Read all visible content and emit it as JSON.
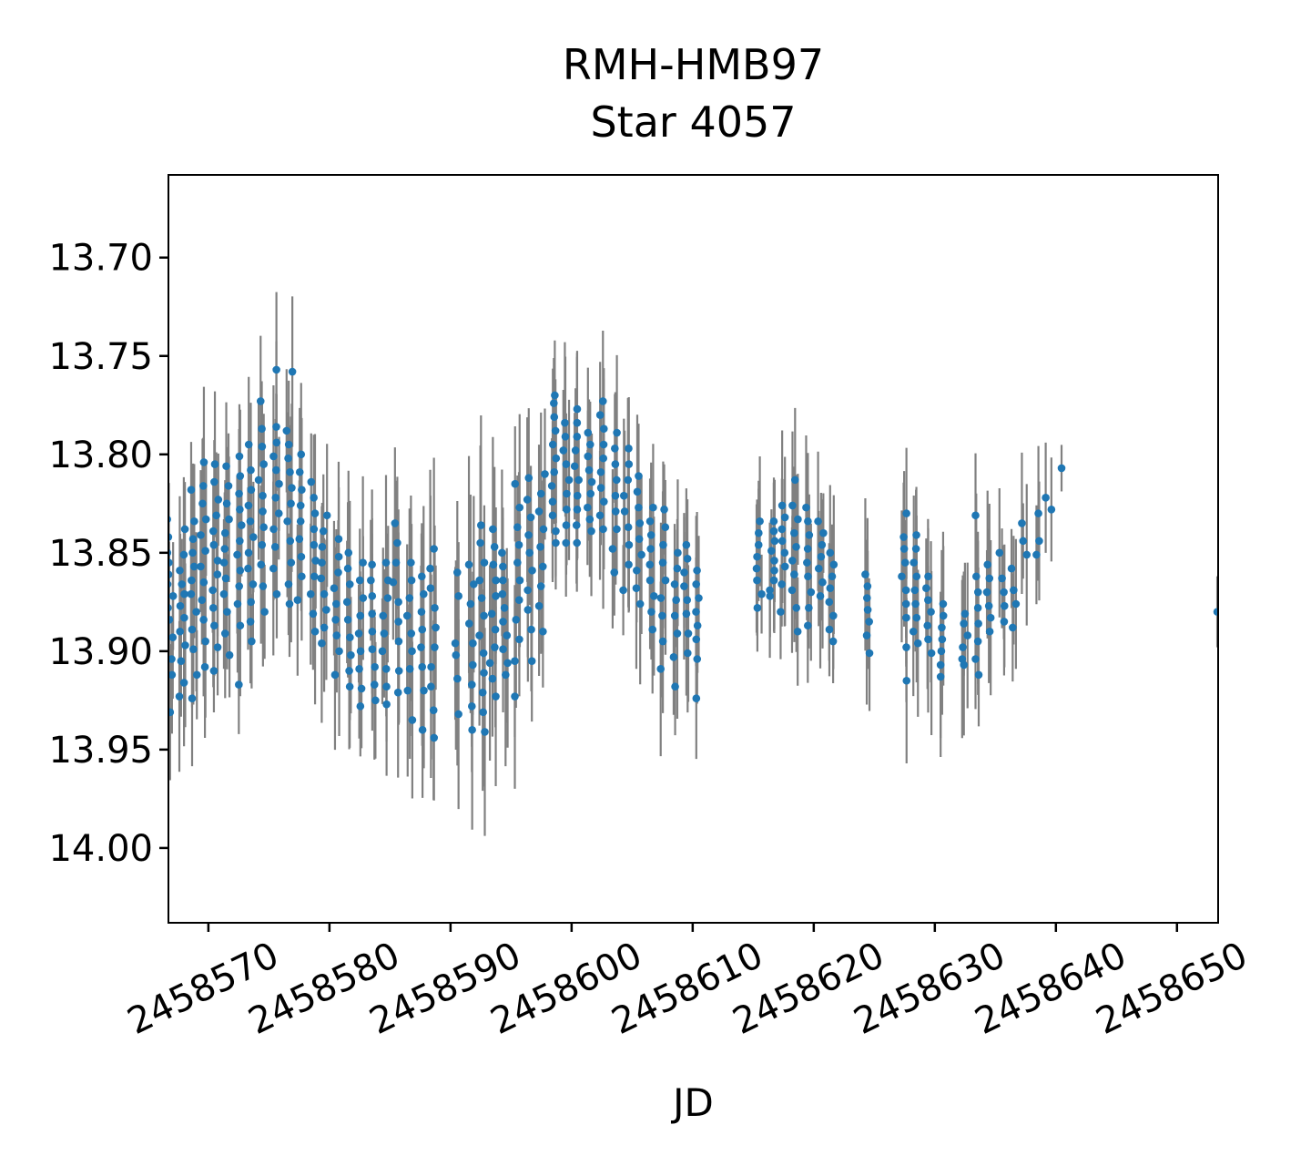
{
  "title": "RMH-HMB97",
  "subtitle": "Star 4057",
  "xlabel": "JD",
  "chart_data": {
    "type": "scatter",
    "title": "RMH-HMB97",
    "subtitle": "Star 4057",
    "xlabel": "JD",
    "ylabel": "",
    "legend": null,
    "grid": false,
    "x_ticks": [
      2458570,
      2458580,
      2458590,
      2458600,
      2458610,
      2458620,
      2458630,
      2458640,
      2458650
    ],
    "y_ticks": [
      13.7,
      13.75,
      13.8,
      13.85,
      13.9,
      13.95,
      14.0
    ],
    "y_tick_labels": [
      "13.70",
      "13.75",
      "13.80",
      "13.85",
      "13.90",
      "13.95",
      "14.00"
    ],
    "x_range": [
      2458566.7,
      2458653.4
    ],
    "y_range": [
      13.658,
      14.038
    ],
    "y_axis_inverted": true,
    "x_tick_rotation_deg": 26,
    "marker_color": "#1f77b4",
    "errorbar_color": "#808080",
    "intra_night_spread_days": 0.5,
    "nights": [
      {
        "jd": 2458566.85,
        "err": 0.03,
        "mags": [
          13.833,
          13.842,
          13.85,
          13.855,
          13.861,
          13.866,
          13.872,
          13.878,
          13.884,
          13.893,
          13.904,
          13.912,
          13.931
        ]
      },
      {
        "jd": 2458567.85,
        "err": 0.03,
        "mags": [
          13.838,
          13.851,
          13.859,
          13.866,
          13.871,
          13.877,
          13.883,
          13.89,
          13.897,
          13.905,
          13.916,
          13.923
        ]
      },
      {
        "jd": 2458568.8,
        "err": 0.03,
        "mags": [
          13.818,
          13.834,
          13.843,
          13.85,
          13.857,
          13.864,
          13.871,
          13.88,
          13.889,
          13.899,
          13.912,
          13.924
        ]
      },
      {
        "jd": 2458569.6,
        "err": 0.03,
        "mags": [
          13.804,
          13.816,
          13.825,
          13.833,
          13.841,
          13.849,
          13.857,
          13.865,
          13.874,
          13.884,
          13.895,
          13.908
        ]
      },
      {
        "jd": 2458570.6,
        "err": 0.03,
        "mags": [
          13.805,
          13.814,
          13.823,
          13.831,
          13.839,
          13.846,
          13.854,
          13.861,
          13.869,
          13.878,
          13.887,
          13.898,
          13.91
        ]
      },
      {
        "jd": 2458571.5,
        "err": 0.03,
        "mags": [
          13.806,
          13.816,
          13.825,
          13.833,
          13.84,
          13.848,
          13.855,
          13.863,
          13.871,
          13.88,
          13.891,
          13.902
        ]
      },
      {
        "jd": 2458572.5,
        "err": 0.03,
        "mags": [
          13.801,
          13.811,
          13.82,
          13.828,
          13.836,
          13.844,
          13.851,
          13.859,
          13.867,
          13.876,
          13.887,
          13.917
        ]
      },
      {
        "jd": 2458573.5,
        "err": 0.03,
        "mags": [
          13.795,
          13.808,
          13.818,
          13.826,
          13.834,
          13.842,
          13.85,
          13.858,
          13.866,
          13.875,
          13.885,
          13.895
        ]
      },
      {
        "jd": 2458574.4,
        "err": 0.03,
        "mags": [
          13.773,
          13.787,
          13.796,
          13.805,
          13.813,
          13.821,
          13.829,
          13.837,
          13.846,
          13.856,
          13.867,
          13.88
        ]
      },
      {
        "jd": 2458575.6,
        "err": 0.032,
        "mags": [
          13.757,
          13.786,
          13.794,
          13.801,
          13.808,
          13.815,
          13.822,
          13.83,
          13.838,
          13.847,
          13.858,
          13.871
        ]
      },
      {
        "jd": 2458576.7,
        "err": 0.032,
        "mags": [
          13.758,
          13.788,
          13.795,
          13.802,
          13.809,
          13.817,
          13.825,
          13.834,
          13.844,
          13.855,
          13.866,
          13.876
        ]
      },
      {
        "jd": 2458577.5,
        "err": 0.03,
        "mags": [
          13.8,
          13.809,
          13.818,
          13.826,
          13.834,
          13.843,
          13.852,
          13.862,
          13.874
        ]
      },
      {
        "jd": 2458578.65,
        "err": 0.03,
        "mags": [
          13.814,
          13.822,
          13.83,
          13.838,
          13.846,
          13.854,
          13.862,
          13.871,
          13.881,
          13.89
        ]
      },
      {
        "jd": 2458579.55,
        "err": 0.03,
        "mags": [
          13.831,
          13.839,
          13.847,
          13.855,
          13.863,
          13.871,
          13.879,
          13.888,
          13.896
        ]
      },
      {
        "jd": 2458580.6,
        "err": 0.032,
        "mags": [
          13.843,
          13.852,
          13.86,
          13.868,
          13.876,
          13.884,
          13.892,
          13.9,
          13.912
        ]
      },
      {
        "jd": 2458581.6,
        "err": 0.032,
        "mags": [
          13.85,
          13.858,
          13.866,
          13.875,
          13.884,
          13.893,
          13.902,
          13.91,
          13.918
        ]
      },
      {
        "jd": 2458582.55,
        "err": 0.032,
        "mags": [
          13.855,
          13.864,
          13.873,
          13.882,
          13.891,
          13.9,
          13.909,
          13.919,
          13.928
        ]
      },
      {
        "jd": 2458583.55,
        "err": 0.032,
        "mags": [
          13.856,
          13.864,
          13.872,
          13.881,
          13.89,
          13.899,
          13.908,
          13.917,
          13.925
        ]
      },
      {
        "jd": 2458584.6,
        "err": 0.034,
        "mags": [
          13.855,
          13.864,
          13.873,
          13.882,
          13.891,
          13.9,
          13.909,
          13.918,
          13.927
        ]
      },
      {
        "jd": 2458585.5,
        "err": 0.034,
        "mags": [
          13.835,
          13.845,
          13.855,
          13.865,
          13.875,
          13.885,
          13.895,
          13.91,
          13.921
        ]
      },
      {
        "jd": 2458586.6,
        "err": 0.034,
        "mags": [
          13.855,
          13.864,
          13.873,
          13.882,
          13.891,
          13.9,
          13.909,
          13.92,
          13.935
        ]
      },
      {
        "jd": 2458587.6,
        "err": 0.034,
        "mags": [
          13.862,
          13.871,
          13.88,
          13.889,
          13.898,
          13.908,
          13.92,
          13.94
        ]
      },
      {
        "jd": 2458588.55,
        "err": 0.036,
        "mags": [
          13.848,
          13.858,
          13.868,
          13.878,
          13.888,
          13.898,
          13.908,
          13.918,
          13.93,
          13.944
        ]
      },
      {
        "jd": 2458590.6,
        "err": 0.038,
        "mags": [
          13.86,
          13.872,
          13.896,
          13.902,
          13.914,
          13.932
        ]
      },
      {
        "jd": 2458591.7,
        "err": 0.04,
        "mags": [
          13.856,
          13.866,
          13.876,
          13.886,
          13.896,
          13.907,
          13.917,
          13.928,
          13.94
        ]
      },
      {
        "jd": 2458592.6,
        "err": 0.04,
        "mags": [
          13.836,
          13.845,
          13.855,
          13.864,
          13.873,
          13.882,
          13.892,
          13.901,
          13.911,
          13.921,
          13.931,
          13.941
        ]
      },
      {
        "jd": 2458593.5,
        "err": 0.036,
        "mags": [
          13.838,
          13.847,
          13.856,
          13.864,
          13.872,
          13.881,
          13.889,
          13.898,
          13.906,
          13.914,
          13.923
        ]
      },
      {
        "jd": 2458594.5,
        "err": 0.034,
        "mags": [
          13.85,
          13.857,
          13.864,
          13.871,
          13.878,
          13.885,
          13.892,
          13.899,
          13.906,
          13.912
        ]
      },
      {
        "jd": 2458595.5,
        "err": 0.034,
        "mags": [
          13.815,
          13.827,
          13.837,
          13.846,
          13.855,
          13.864,
          13.874,
          13.884,
          13.894,
          13.905,
          13.923
        ]
      },
      {
        "jd": 2458596.5,
        "err": 0.034,
        "mags": [
          13.812,
          13.823,
          13.832,
          13.841,
          13.85,
          13.859,
          13.869,
          13.879,
          13.889,
          13.905
        ]
      },
      {
        "jd": 2458597.55,
        "err": 0.032,
        "mags": [
          13.81,
          13.82,
          13.829,
          13.838,
          13.847,
          13.857,
          13.867,
          13.877,
          13.89
        ]
      },
      {
        "jd": 2458598.5,
        "err": 0.03,
        "mags": [
          13.77,
          13.774,
          13.781,
          13.788,
          13.795,
          13.802,
          13.809,
          13.816,
          13.824,
          13.831,
          13.839,
          13.845
        ]
      },
      {
        "jd": 2458599.55,
        "err": 0.03,
        "mags": [
          13.784,
          13.791,
          13.798,
          13.805,
          13.813,
          13.82,
          13.828,
          13.836,
          13.845
        ]
      },
      {
        "jd": 2458600.5,
        "err": 0.03,
        "mags": [
          13.777,
          13.784,
          13.791,
          13.798,
          13.806,
          13.813,
          13.821,
          13.828,
          13.836,
          13.845
        ]
      },
      {
        "jd": 2458601.5,
        "err": 0.03,
        "mags": [
          13.789,
          13.795,
          13.801,
          13.808,
          13.814,
          13.82,
          13.827,
          13.833,
          13.839
        ]
      },
      {
        "jd": 2458602.55,
        "err": 0.03,
        "mags": [
          13.773,
          13.78,
          13.787,
          13.795,
          13.802,
          13.809,
          13.817,
          13.824,
          13.831,
          13.838
        ]
      },
      {
        "jd": 2458603.5,
        "err": 0.03,
        "mags": [
          13.789,
          13.797,
          13.805,
          13.813,
          13.821,
          13.829,
          13.838,
          13.848,
          13.86
        ]
      },
      {
        "jd": 2458604.5,
        "err": 0.03,
        "mags": [
          13.797,
          13.805,
          13.813,
          13.821,
          13.829,
          13.837,
          13.846,
          13.856,
          13.869
        ]
      },
      {
        "jd": 2458605.55,
        "err": 0.03,
        "mags": [
          13.811,
          13.819,
          13.827,
          13.835,
          13.843,
          13.851,
          13.859,
          13.868,
          13.876
        ]
      },
      {
        "jd": 2458606.6,
        "err": 0.03,
        "mags": [
          13.827,
          13.834,
          13.841,
          13.848,
          13.856,
          13.864,
          13.872,
          13.88,
          13.889
        ]
      },
      {
        "jd": 2458607.6,
        "err": 0.032,
        "mags": [
          13.828,
          13.837,
          13.846,
          13.855,
          13.864,
          13.873,
          13.882,
          13.895,
          13.909
        ]
      },
      {
        "jd": 2458608.55,
        "err": 0.032,
        "mags": [
          13.85,
          13.858,
          13.866,
          13.874,
          13.882,
          13.891,
          13.903,
          13.918
        ]
      },
      {
        "jd": 2458609.5,
        "err": 0.03,
        "mags": [
          13.846,
          13.853,
          13.86,
          13.867,
          13.874,
          13.881,
          13.891,
          13.901
        ]
      },
      {
        "jd": 2458610.5,
        "err": 0.03,
        "mags": [
          13.859,
          13.866,
          13.873,
          13.88,
          13.887,
          13.894,
          13.904,
          13.924
        ]
      },
      {
        "jd": 2458615.45,
        "err": 0.028,
        "mags": [
          13.834,
          13.84,
          13.846,
          13.852,
          13.858,
          13.864,
          13.871,
          13.878
        ]
      },
      {
        "jd": 2458616.55,
        "err": 0.028,
        "mags": [
          13.834,
          13.839,
          13.844,
          13.849,
          13.854,
          13.859,
          13.864,
          13.869,
          13.872
        ]
      },
      {
        "jd": 2458617.5,
        "err": 0.028,
        "mags": [
          13.826,
          13.832,
          13.838,
          13.844,
          13.85,
          13.857,
          13.866,
          13.88
        ]
      },
      {
        "jd": 2458618.45,
        "err": 0.028,
        "mags": [
          13.813,
          13.826,
          13.833,
          13.84,
          13.847,
          13.854,
          13.861,
          13.869,
          13.878,
          13.89
        ]
      },
      {
        "jd": 2458619.55,
        "err": 0.028,
        "mags": [
          13.827,
          13.834,
          13.841,
          13.848,
          13.855,
          13.862,
          13.87,
          13.878,
          13.887
        ]
      },
      {
        "jd": 2458620.55,
        "err": 0.028,
        "mags": [
          13.834,
          13.84,
          13.846,
          13.852,
          13.858,
          13.865,
          13.872
        ]
      },
      {
        "jd": 2458621.45,
        "err": 0.03,
        "mags": [
          13.85,
          13.856,
          13.862,
          13.868,
          13.875,
          13.882,
          13.889,
          13.895
        ]
      },
      {
        "jd": 2458624.45,
        "err": 0.03,
        "mags": [
          13.861,
          13.867,
          13.873,
          13.879,
          13.885,
          13.892,
          13.901
        ]
      },
      {
        "jd": 2458627.5,
        "err": 0.03,
        "mags": [
          13.83,
          13.842,
          13.848,
          13.855,
          13.862,
          13.869,
          13.876,
          13.883,
          13.898,
          13.915
        ]
      },
      {
        "jd": 2458628.45,
        "err": 0.03,
        "mags": [
          13.841,
          13.848,
          13.855,
          13.862,
          13.869,
          13.876,
          13.883,
          13.89,
          13.896
        ]
      },
      {
        "jd": 2458629.5,
        "err": 0.03,
        "mags": [
          13.862,
          13.868,
          13.874,
          13.88,
          13.887,
          13.894,
          13.901
        ]
      },
      {
        "jd": 2458630.5,
        "err": 0.03,
        "mags": [
          13.876,
          13.882,
          13.888,
          13.894,
          13.9,
          13.907,
          13.913
        ]
      },
      {
        "jd": 2458632.5,
        "err": 0.03,
        "mags": [
          13.881,
          13.886,
          13.892,
          13.898,
          13.904,
          13.907
        ]
      },
      {
        "jd": 2458633.5,
        "err": 0.032,
        "mags": [
          13.831,
          13.862,
          13.87,
          13.878,
          13.886,
          13.895,
          13.904,
          13.912
        ]
      },
      {
        "jd": 2458634.45,
        "err": 0.03,
        "mags": [
          13.856,
          13.863,
          13.87,
          13.877,
          13.883,
          13.89
        ]
      },
      {
        "jd": 2458635.5,
        "err": 0.028,
        "mags": [
          13.85,
          13.863,
          13.87,
          13.877,
          13.885
        ]
      },
      {
        "jd": 2458636.5,
        "err": 0.028,
        "mags": [
          13.858,
          13.869,
          13.876,
          13.888
        ]
      },
      {
        "jd": 2458637.4,
        "err": 0.026,
        "mags": [
          13.835,
          13.844,
          13.851
        ]
      },
      {
        "jd": 2458638.4,
        "err": 0.026,
        "mags": [
          13.83,
          13.844,
          13.851
        ]
      },
      {
        "jd": 2458639.4,
        "err": 0.026,
        "mags": [
          13.822,
          13.828
        ]
      },
      {
        "jd": 2458640.5,
        "err": 0.012,
        "spread": 0.08,
        "mags": [
          13.807
        ]
      },
      {
        "jd": 2458653.35,
        "err": 0.02,
        "spread": 0.05,
        "mags": [
          13.88
        ]
      }
    ]
  }
}
